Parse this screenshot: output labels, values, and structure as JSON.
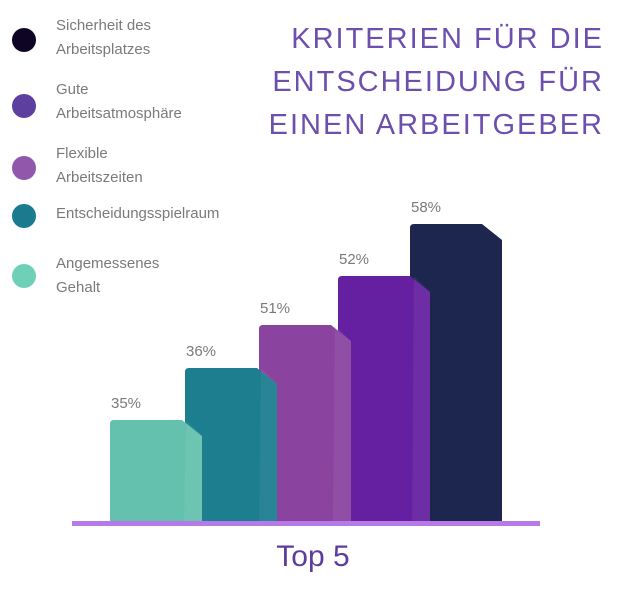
{
  "title": [
    "KRITERIEN FÜR DIE",
    "ENTSCHEIDUNG FÜR",
    "EINEN ARBEITGEBER"
  ],
  "footer": "Top 5",
  "chart_data": {
    "type": "bar",
    "title": "KRITERIEN FÜR DIE ENTSCHEIDUNG FÜR EINEN ARBEITGEBER",
    "xlabel": "Top 5",
    "categories": [
      "Angemessenes Gehalt",
      "Entscheidungsspielraum",
      "Flexible Arbeitszeiten",
      "Gute Arbeitsatmosphäre",
      "Sicherheit des Arbeitsplatzes"
    ],
    "values": [
      35,
      36,
      51,
      52,
      58
    ],
    "labels": [
      "35%",
      "36%",
      "51%",
      "52%",
      "58%"
    ],
    "unit": "%",
    "bar_colors": [
      "#63c1ad",
      "#1c7e8f",
      "#8a44a0",
      "#6420a0",
      "#1d264e"
    ],
    "legend_position": "top-left",
    "grid": false,
    "baseline_color": "#b57ae8"
  },
  "legend": [
    {
      "label": "Sicherheit des\nArbeitsplatzes",
      "color": "#0e0525"
    },
    {
      "label": "Gute\nArbeitsatmosphäre",
      "color": "#5c3f9e"
    },
    {
      "label": "Flexible\nArbeitszeiten",
      "color": "#9057aa"
    },
    {
      "label": "Entscheidungsspielraum",
      "color": "#1b7a8e"
    },
    {
      "label": "Angemessenes\nGehalt",
      "color": "#6fd0b8"
    }
  ]
}
